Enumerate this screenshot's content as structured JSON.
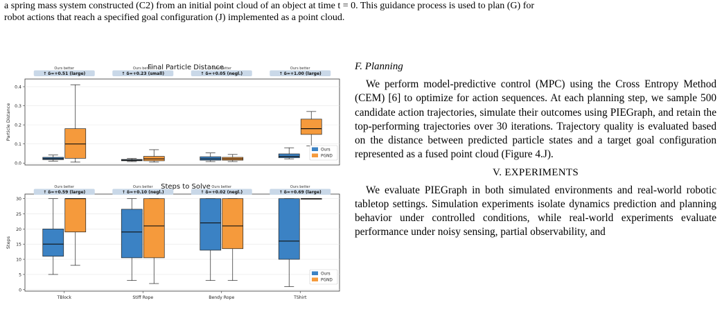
{
  "intro": {
    "line1": "a spring mass system constructed (C2) from an initial point cloud of an object at time t = 0. This guidance process is used to plan (G) for",
    "line2": "robot actions that reach a specified goal configuration (J) implemented as a point cloud."
  },
  "colors": {
    "ours": "#3b82c4",
    "pgnd": "#f59a3c",
    "badge": "#c9d8e8"
  },
  "chart_data": [
    {
      "type": "box",
      "title": "Final Particle Distance",
      "ylabel": "Particle Distance",
      "ylim": [
        -0.01,
        0.44
      ],
      "yticks": [
        "0.0",
        "0.1",
        "0.2",
        "0.3",
        "0.4"
      ],
      "categories": [
        "TBlock",
        "Stiff Rope",
        "Bendy Rope",
        "TShirt"
      ],
      "legend": [
        "Ours",
        "PGND"
      ],
      "badges": [
        {
          "top": "Ours better",
          "label": "↑ δ=+0.51 (large)"
        },
        {
          "top": "Ours better",
          "label": "↑ δ=+0.23 (small)"
        },
        {
          "top": "Ours better",
          "label": "↑ δ=+0.05 (negl.)"
        },
        {
          "top": "Ours better",
          "label": "↑ δ=+1.00 (large)"
        }
      ],
      "series": [
        {
          "name": "Ours",
          "boxes": [
            {
              "min": 0.01,
              "q1": 0.018,
              "median": 0.023,
              "q3": 0.03,
              "max": 0.042
            },
            {
              "min": 0.008,
              "q1": 0.012,
              "median": 0.015,
              "q3": 0.019,
              "max": 0.024
            },
            {
              "min": 0.008,
              "q1": 0.015,
              "median": 0.022,
              "q3": 0.033,
              "max": 0.053
            },
            {
              "min": 0.022,
              "q1": 0.028,
              "median": 0.035,
              "q3": 0.048,
              "max": 0.08
            }
          ]
        },
        {
          "name": "PGND",
          "boxes": [
            {
              "min": 0.005,
              "q1": 0.025,
              "median": 0.1,
              "q3": 0.18,
              "max": 0.41
            },
            {
              "min": 0.005,
              "q1": 0.012,
              "median": 0.022,
              "q3": 0.035,
              "max": 0.07
            },
            {
              "min": 0.008,
              "q1": 0.015,
              "median": 0.022,
              "q3": 0.03,
              "max": 0.045
            },
            {
              "min": 0.09,
              "q1": 0.15,
              "median": 0.18,
              "q3": 0.23,
              "max": 0.27
            }
          ]
        }
      ]
    },
    {
      "type": "box",
      "title": "Steps to Solve",
      "ylabel": "Steps",
      "ylim": [
        -0.5,
        31.5
      ],
      "yticks": [
        "0",
        "5",
        "10",
        "15",
        "20",
        "25",
        "30"
      ],
      "categories": [
        "TBlock",
        "Stiff Rope",
        "Bendy Rope",
        "TShirt"
      ],
      "legend": [
        "Ours",
        "PGND"
      ],
      "badges": [
        {
          "top": "Ours better",
          "label": "↑ δ=+0.59 (large)"
        },
        {
          "top": "Ours better",
          "label": "↑ δ=+0.10 (negl.)"
        },
        {
          "top": "Ours better",
          "label": "↑ δ=+0.02 (negl.)"
        },
        {
          "top": "Ours better",
          "label": "↑ δ=+0.69 (large)"
        }
      ],
      "series": [
        {
          "name": "Ours",
          "boxes": [
            {
              "min": 5,
              "q1": 11,
              "median": 15,
              "q3": 20,
              "max": 30
            },
            {
              "min": 3,
              "q1": 10.5,
              "median": 19,
              "q3": 26.5,
              "max": 30
            },
            {
              "min": 3,
              "q1": 13,
              "median": 22,
              "q3": 30,
              "max": 30
            },
            {
              "min": 1,
              "q1": 10,
              "median": 16,
              "q3": 30,
              "max": 30
            }
          ]
        },
        {
          "name": "PGND",
          "boxes": [
            {
              "min": 8,
              "q1": 19,
              "median": 30,
              "q3": 30,
              "max": 30
            },
            {
              "min": 2,
              "q1": 10.5,
              "median": 21,
              "q3": 30,
              "max": 30
            },
            {
              "min": 3,
              "q1": 13.5,
              "median": 21,
              "q3": 30,
              "max": 30
            },
            {
              "min": 30,
              "q1": 30,
              "median": 30,
              "q3": 30,
              "max": 30
            }
          ]
        }
      ]
    }
  ],
  "right_column": {
    "subsection": "F. Planning",
    "para1": "We perform model-predictive control (MPC) using the Cross Entropy Method (CEM) [6] to optimize for action sequences. At each planning step, we sample 500 candidate action trajectories, simulate their outcomes using PIEGraph, and retain the top-performing trajectories over 30 iterations. Trajectory quality is evaluated based on the distance between predicted particle states and a target goal configuration represented as a fused point cloud (Figure 4.J).",
    "section": "V. EXPERIMENTS",
    "para2": "We evaluate PIEGraph in both simulated environments and real-world robotic tabletop settings. Simulation experiments isolate dynamics prediction and planning behavior under controlled conditions, while real-world experiments evaluate performance under noisy sensing, partial observability, and"
  }
}
